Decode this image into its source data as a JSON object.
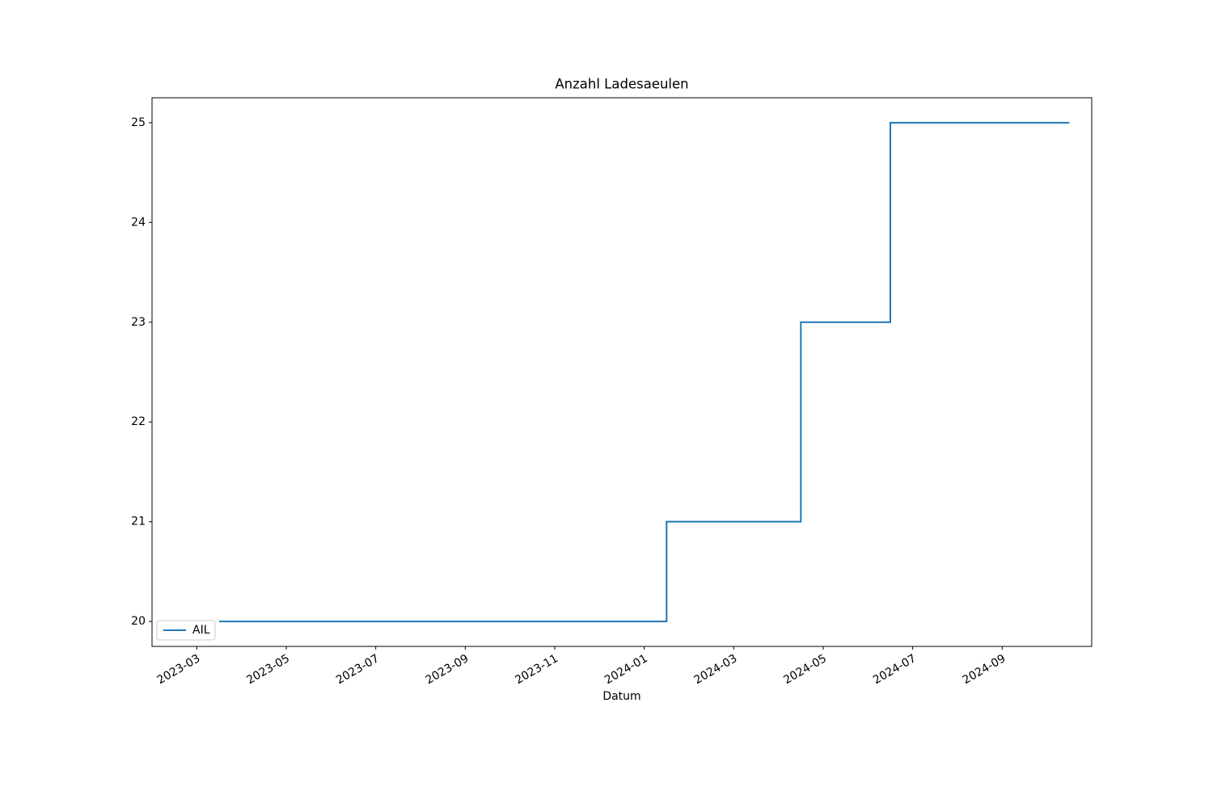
{
  "chart_data": {
    "type": "line",
    "title": "Anzahl Ladesaeulen",
    "xlabel": "Datum",
    "series": [
      {
        "name": "AIL",
        "color": "#1f77b4",
        "x": [
          "2023-03",
          "2024-01",
          "2024-01",
          "2024-04",
          "2024-04",
          "2024-06",
          "2024-06",
          "2024-10"
        ],
        "values": [
          20,
          20,
          21,
          21,
          23,
          23,
          25,
          25
        ]
      }
    ],
    "xlim": [
      "2023-02",
      "2024-11"
    ],
    "xticks": [
      "2023-03",
      "2023-05",
      "2023-07",
      "2023-09",
      "2023-11",
      "2024-01",
      "2024-03",
      "2024-05",
      "2024-07",
      "2024-09"
    ],
    "ylim": [
      19.75,
      25.25
    ],
    "yticks": [
      20,
      21,
      22,
      23,
      24,
      25
    ],
    "grid": false,
    "legend": "lower left"
  }
}
